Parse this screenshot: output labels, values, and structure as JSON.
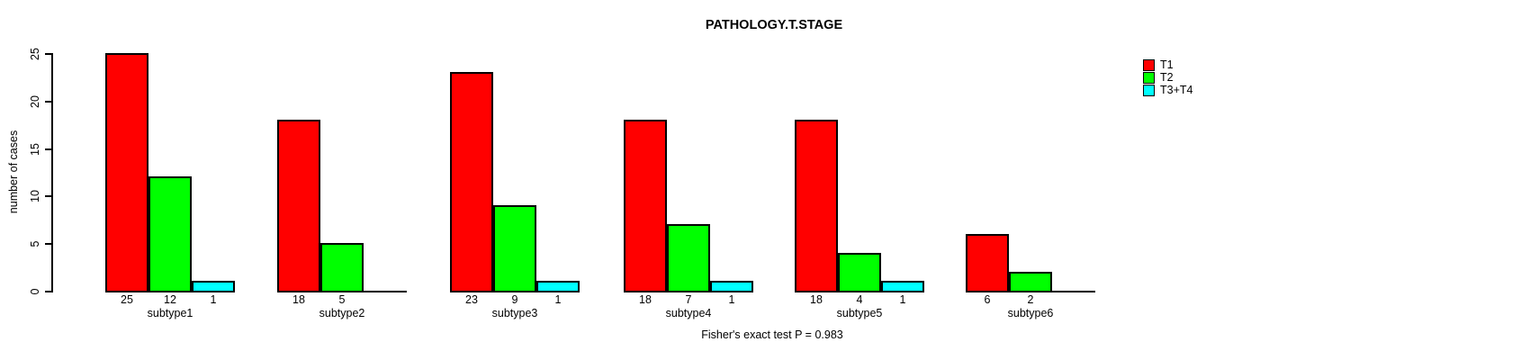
{
  "chart_data": {
    "type": "bar",
    "title": "PATHOLOGY.T.STAGE",
    "xlabel": "",
    "ylabel": "number of cases",
    "ylim": [
      0,
      25
    ],
    "yticks": [
      0,
      5,
      10,
      15,
      20,
      25
    ],
    "grid": false,
    "legend_position": "top-right",
    "categories": [
      "subtype1",
      "subtype2",
      "subtype3",
      "subtype4",
      "subtype5",
      "subtype6"
    ],
    "series": [
      {
        "name": "T1",
        "color": "#ff0000",
        "values": [
          25,
          18,
          23,
          18,
          18,
          6
        ]
      },
      {
        "name": "T2",
        "color": "#00ff00",
        "values": [
          12,
          5,
          9,
          7,
          4,
          2
        ]
      },
      {
        "name": "T3+T4",
        "color": "#00ffff",
        "values": [
          1,
          0,
          1,
          1,
          1,
          0
        ]
      }
    ],
    "bar_value_labels_shown": true,
    "zero_value_labels_hidden": true,
    "annotation": "Fisher's exact test P = 0.983"
  },
  "colors": {
    "background": "#ffffff",
    "axis": "#000000",
    "text": "#000000"
  }
}
